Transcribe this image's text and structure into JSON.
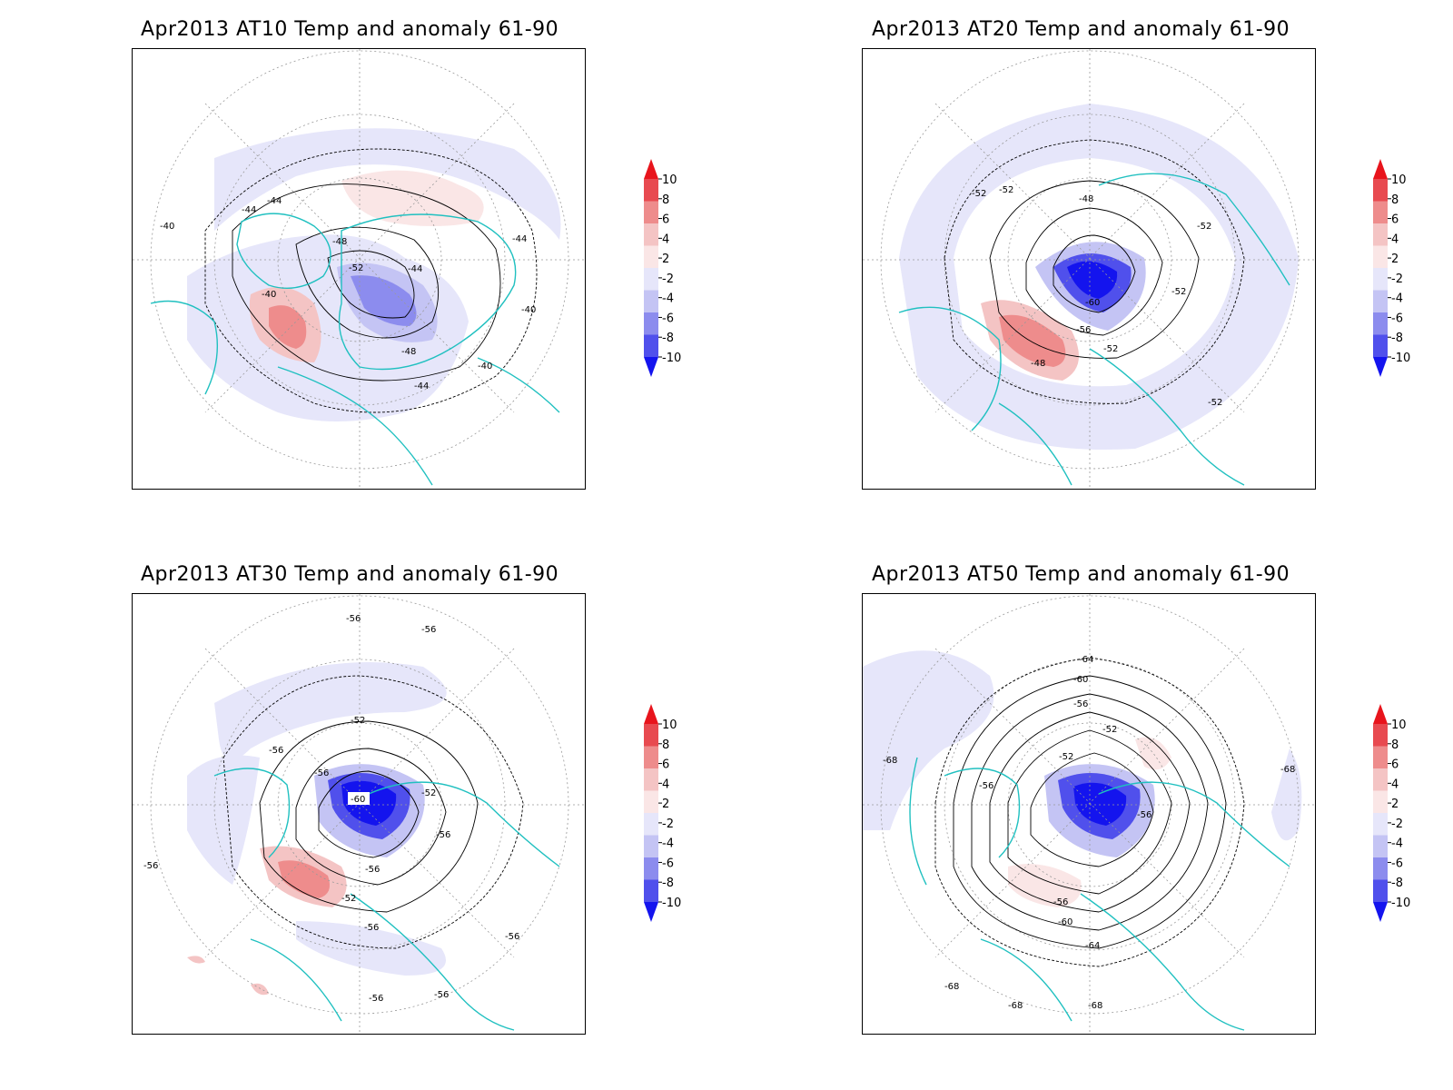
{
  "panels": [
    {
      "title": "Apr2013 AT10 Temp and anomaly 61-90",
      "contour_labels": [
        "-40",
        "-44",
        "-44",
        "-48",
        "-52",
        "-44",
        "-44",
        "-40",
        "-40",
        "-48",
        "-40",
        "-44"
      ]
    },
    {
      "title": "Apr2013 AT20 Temp and anomaly 61-90",
      "contour_labels": [
        "-52",
        "-52",
        "-48",
        "-52",
        "-60",
        "-52",
        "-56",
        "-52",
        "-48",
        "-52"
      ]
    },
    {
      "title": "Apr2013 AT30 Temp and anomaly 61-90",
      "contour_labels": [
        "-56",
        "-56",
        "-52",
        "-56",
        "-56",
        "-60",
        "-52",
        "-56",
        "-56",
        "-52",
        "-56",
        "-56",
        "-56",
        "-56",
        "-56"
      ]
    },
    {
      "title": "Apr2013 AT50 Temp and anomaly 61-90",
      "contour_labels": [
        "-64",
        "-60",
        "-56",
        "-52",
        "-52",
        "-56",
        "-56",
        "-68",
        "-68",
        "-56",
        "-60",
        "-64",
        "-68",
        "-68",
        "-68"
      ]
    }
  ],
  "colorbar": {
    "labels": [
      "10",
      "8",
      "6",
      "4",
      "2",
      "-2",
      "-4",
      "-6",
      "-8",
      "-10"
    ],
    "colors": [
      "#e8141c",
      "#e84a50",
      "#ee8c8c",
      "#f4c4c4",
      "#fae6e6",
      "#e6e6fa",
      "#c4c4f4",
      "#8c8cee",
      "#5050ec",
      "#1414ee"
    ]
  },
  "colors": {
    "coast": "#20c0c0",
    "warm": "#ee8c8c",
    "cold": "#1414ee",
    "contour": "#000000"
  }
}
